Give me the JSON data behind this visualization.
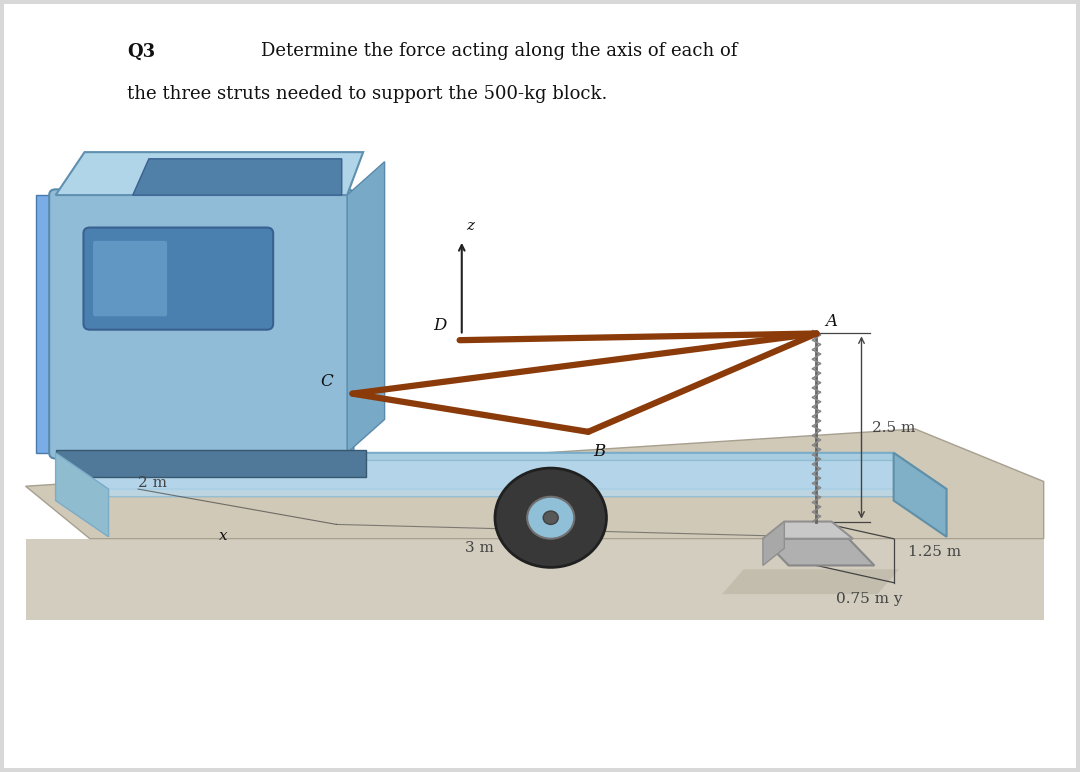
{
  "bg_color": "#d8d8d8",
  "white_panel_color": "#ffffff",
  "title_q": "Q3",
  "title_text1": "Determine the force acting along the axis of each of",
  "title_text2": "the three struts needed to support the 500-kg block.",
  "label_25m": "2.5 m",
  "label_2m": "2 m",
  "label_3m": "3 m",
  "label_125m": "1.25 m",
  "label_075m": "0.75 m",
  "label_x": "x",
  "label_y": "y",
  "label_z": "z",
  "label_A": "A",
  "label_B": "B",
  "label_C": "C",
  "label_D": "D",
  "truck_body_color": "#8ab8d4",
  "strut_color": "#8b3a0a",
  "dim_line_color": "#444444",
  "text_color": "#111111"
}
